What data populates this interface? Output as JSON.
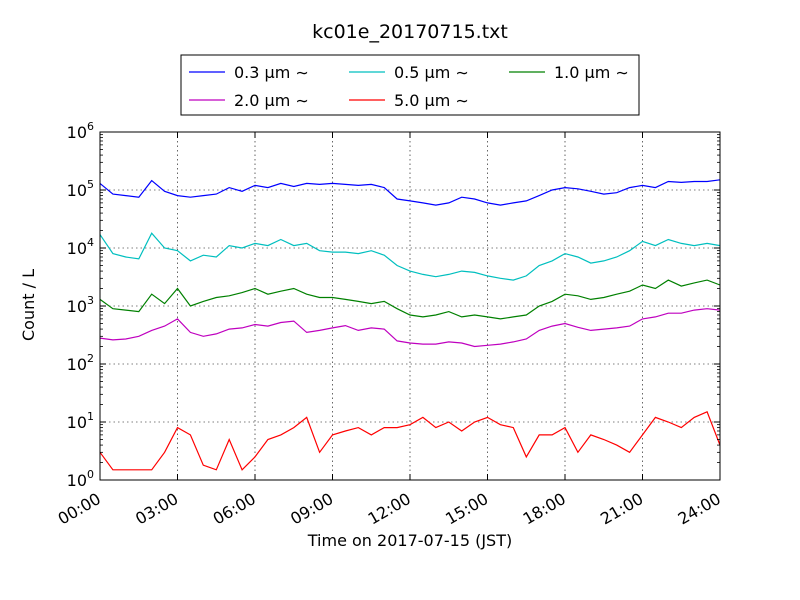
{
  "chart_data": {
    "type": "line",
    "title": "kc01e_20170715.txt",
    "xlabel": "Time on 2017-07-15 (JST)",
    "ylabel": "Count / L",
    "yscale": "log",
    "ylim": [
      1,
      1000000
    ],
    "xlim": [
      "00:00",
      "24:00"
    ],
    "xticks": [
      "00:00",
      "03:00",
      "06:00",
      "09:00",
      "12:00",
      "15:00",
      "18:00",
      "21:00",
      "24:00"
    ],
    "yticks": [
      {
        "base": "10",
        "exp": "0"
      },
      {
        "base": "10",
        "exp": "1"
      },
      {
        "base": "10",
        "exp": "2"
      },
      {
        "base": "10",
        "exp": "3"
      },
      {
        "base": "10",
        "exp": "4"
      },
      {
        "base": "10",
        "exp": "5"
      },
      {
        "base": "10",
        "exp": "6"
      }
    ],
    "grid": true,
    "legend_position": "top-center",
    "x_hours": [
      0,
      0.5,
      1,
      1.5,
      2,
      2.5,
      3,
      3.5,
      4,
      4.5,
      5,
      5.5,
      6,
      6.5,
      7,
      7.5,
      8,
      8.5,
      9,
      9.5,
      10,
      10.5,
      11,
      11.5,
      12,
      12.5,
      13,
      13.5,
      14,
      14.5,
      15,
      15.5,
      16,
      16.5,
      17,
      17.5,
      18,
      18.5,
      19,
      19.5,
      20,
      20.5,
      21,
      21.5,
      22,
      22.5,
      23,
      23.5,
      24
    ],
    "series": [
      {
        "name": "0.3 μm ∼",
        "color": "#0000ff",
        "values": [
          130000,
          85000,
          80000,
          75000,
          145000,
          95000,
          80000,
          75000,
          80000,
          85000,
          110000,
          95000,
          120000,
          110000,
          130000,
          115000,
          130000,
          125000,
          130000,
          125000,
          120000,
          125000,
          110000,
          70000,
          65000,
          60000,
          55000,
          60000,
          75000,
          70000,
          60000,
          55000,
          60000,
          65000,
          80000,
          100000,
          110000,
          105000,
          95000,
          85000,
          90000,
          110000,
          120000,
          110000,
          140000,
          135000,
          140000,
          140000,
          150000
        ]
      },
      {
        "name": "0.5 μm ∼",
        "color": "#00bfbf",
        "values": [
          17000,
          8000,
          7000,
          6500,
          18000,
          10000,
          9000,
          6000,
          7500,
          7000,
          11000,
          10000,
          12000,
          11000,
          14000,
          11000,
          12000,
          9000,
          8500,
          8500,
          8000,
          9000,
          7500,
          5000,
          4000,
          3500,
          3200,
          3500,
          4000,
          3800,
          3300,
          3000,
          2800,
          3300,
          5000,
          6000,
          8000,
          7000,
          5500,
          6000,
          7000,
          9000,
          13000,
          11000,
          14000,
          12000,
          11000,
          12000,
          11000
        ]
      },
      {
        "name": "1.0 μm ∼",
        "color": "#008000",
        "values": [
          1300,
          900,
          850,
          800,
          1600,
          1100,
          2000,
          1000,
          1200,
          1400,
          1500,
          1700,
          2000,
          1600,
          1800,
          2000,
          1600,
          1400,
          1400,
          1300,
          1200,
          1100,
          1200,
          900,
          700,
          650,
          700,
          800,
          650,
          700,
          650,
          600,
          650,
          700,
          1000,
          1200,
          1600,
          1500,
          1300,
          1400,
          1600,
          1800,
          2300,
          2000,
          2800,
          2200,
          2500,
          2800,
          2300
        ]
      },
      {
        "name": "2.0 μm ∼",
        "color": "#bf00bf",
        "values": [
          280,
          260,
          270,
          300,
          380,
          450,
          600,
          350,
          300,
          330,
          400,
          420,
          480,
          450,
          520,
          550,
          350,
          380,
          420,
          460,
          380,
          420,
          400,
          250,
          230,
          220,
          220,
          240,
          230,
          200,
          210,
          220,
          240,
          270,
          380,
          450,
          500,
          430,
          380,
          400,
          420,
          450,
          600,
          650,
          750,
          750,
          850,
          900,
          850
        ]
      },
      {
        "name": "5.0 μm ∼",
        "color": "#ff0000",
        "values": [
          3,
          1.5,
          1.5,
          1.5,
          1.5,
          3,
          8,
          6,
          1.8,
          1.5,
          5,
          1.5,
          2.5,
          5,
          6,
          8,
          12,
          3,
          6,
          7,
          8,
          6,
          8,
          8,
          9,
          12,
          8,
          10,
          7,
          10,
          12,
          9,
          8,
          2.5,
          6,
          6,
          8,
          3,
          6,
          5,
          4,
          3,
          6,
          12,
          10,
          8,
          12,
          15,
          4
        ]
      }
    ]
  }
}
